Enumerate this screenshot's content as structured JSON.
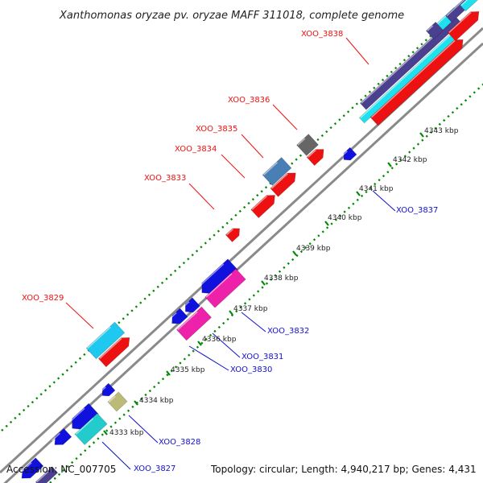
{
  "title": "Xanthomonas oryzae pv. oryzae MAFF 311018, complete genome",
  "accession": "Accession: NC_007705",
  "summary": "Topology: circular; Length: 4,940,217 bp; Genes: 4,431",
  "colors": {
    "forward_label": "#ee1111",
    "reverse_label": "#1111cc",
    "backbone": "#888888",
    "tick": "#008800"
  },
  "tick_labels": [
    {
      "id": "t4333",
      "label": "4333 kbp"
    },
    {
      "id": "t4334",
      "label": "4334 kbp"
    },
    {
      "id": "t4335",
      "label": "4335 kbp"
    },
    {
      "id": "t4336",
      "label": "4336 kbp"
    },
    {
      "id": "t4337",
      "label": "4337 kbp"
    },
    {
      "id": "t4338",
      "label": "4338 kbp"
    },
    {
      "id": "t4339",
      "label": "4339 kbp"
    },
    {
      "id": "t4340",
      "label": "4340 kbp"
    },
    {
      "id": "t4341",
      "label": "4341 kbp"
    },
    {
      "id": "t4342",
      "label": "4342 kbp"
    },
    {
      "id": "t4343",
      "label": "4343 kbp"
    }
  ],
  "gene_labels": [
    {
      "id": "g3838",
      "label": "XOO_3838",
      "strand": "forward"
    },
    {
      "id": "g3836",
      "label": "XOO_3836",
      "strand": "forward"
    },
    {
      "id": "g3835",
      "label": "XOO_3835",
      "strand": "forward"
    },
    {
      "id": "g3834",
      "label": "XOO_3834",
      "strand": "forward"
    },
    {
      "id": "g3833",
      "label": "XOO_3833",
      "strand": "forward"
    },
    {
      "id": "g3829",
      "label": "XOO_3829",
      "strand": "forward"
    },
    {
      "id": "g3837",
      "label": "XOO_3837",
      "strand": "reverse"
    },
    {
      "id": "g3832",
      "label": "XOO_3832",
      "strand": "reverse"
    },
    {
      "id": "g3831",
      "label": "XOO_3831",
      "strand": "reverse"
    },
    {
      "id": "g3830",
      "label": "XOO_3830",
      "strand": "reverse"
    },
    {
      "id": "g3828",
      "label": "XOO_3828",
      "strand": "reverse"
    },
    {
      "id": "g3827",
      "label": "XOO_3827",
      "strand": "reverse"
    }
  ]
}
